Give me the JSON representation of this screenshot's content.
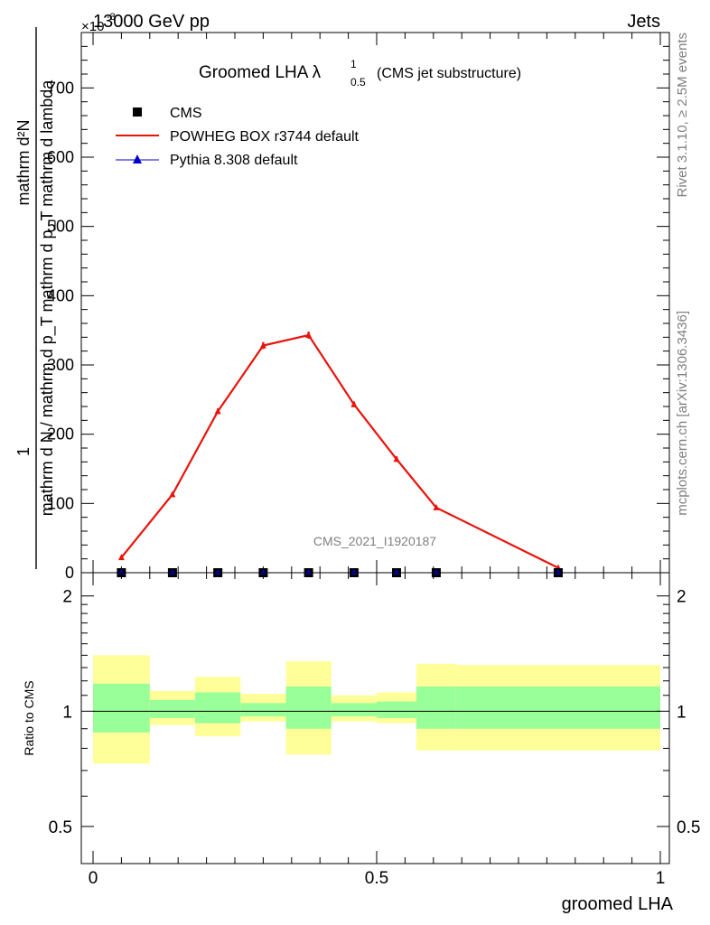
{
  "header": {
    "left": "13000 GeV pp",
    "right": "Jets",
    "exponent_marker": "×10",
    "exponent_value": "-3"
  },
  "side_labels": {
    "rivet": "Rivet 3.1.10, ≥ 2.5M events",
    "mcplots": "mcplots.cern.ch [arXiv:1306.3436]"
  },
  "watermark": "CMS_2021_I1920187",
  "title": {
    "main": "Groomed LHA λ",
    "sup": "1",
    "sub": "0.5",
    "suffix": "(CMS jet substructure)"
  },
  "legend": {
    "placement": "top-left",
    "entries": [
      {
        "label": "CMS",
        "marker": "square",
        "color": "#000000"
      },
      {
        "label": "POWHEG BOX r3744 default",
        "marker": "line",
        "color": "#e8140c"
      },
      {
        "label": "Pythia 8.308 default",
        "marker": "triangle",
        "color": "#0000cc"
      }
    ]
  },
  "chart_data": [
    {
      "type": "line",
      "panel": "main",
      "ylabel_numerator": "1",
      "ylabel_denominator": "mathrm d N / mathrm d p_T mathrm d p_T mathrm d lambda",
      "ylabel_numerator_right": "mathrm d²N",
      "xlim": [
        0,
        1
      ],
      "ylim": [
        0,
        780
      ],
      "y_scale_note": "×10^-3",
      "yticks": [
        0,
        100,
        200,
        300,
        400,
        500,
        600,
        700
      ],
      "ytick_labels": [
        "0",
        "100",
        "200",
        "300",
        "400",
        "500",
        "600",
        "700"
      ],
      "series": [
        {
          "name": "POWHEG BOX r3744 default",
          "color": "#e8140c",
          "x": [
            0.05,
            0.14,
            0.22,
            0.3,
            0.38,
            0.46,
            0.535,
            0.605,
            0.82
          ],
          "y": [
            22,
            113,
            233,
            328,
            343,
            243,
            164,
            94,
            7
          ],
          "err": [
            2,
            3,
            4,
            5,
            5,
            4,
            4,
            3,
            1
          ]
        },
        {
          "name": "CMS",
          "color": "#000000",
          "x": [
            0.05,
            0.14,
            0.22,
            0.3,
            0.38,
            0.46,
            0.535,
            0.605,
            0.82
          ],
          "y": [
            0,
            0,
            0,
            0,
            0,
            0,
            0,
            0,
            0
          ]
        },
        {
          "name": "Pythia 8.308 default",
          "color": "#0000cc",
          "x": [
            0.05,
            0.14,
            0.22,
            0.3,
            0.38,
            0.46,
            0.535,
            0.605,
            0.82
          ],
          "y": [
            0,
            0,
            0,
            0,
            0,
            0,
            0,
            0,
            0
          ]
        }
      ]
    },
    {
      "type": "area",
      "panel": "ratio",
      "ylabel": "Ratio to CMS",
      "xlabel": "groomed LHA",
      "xlim": [
        0,
        1
      ],
      "ylim": [
        0.4,
        2.3
      ],
      "y_scale": "log",
      "yticks": [
        0.5,
        1,
        2
      ],
      "ytick_labels": [
        "0.5",
        "1",
        "2"
      ],
      "xticks": [
        0,
        0.5,
        1
      ],
      "xtick_labels": [
        "0",
        "0.5",
        "1"
      ],
      "reference_line": 1,
      "bands": [
        {
          "x": [
            0.0,
            0.1
          ],
          "inner": [
            0.88,
            1.18
          ],
          "outer": [
            0.73,
            1.4
          ]
        },
        {
          "x": [
            0.1,
            0.18
          ],
          "inner": [
            0.96,
            1.07
          ],
          "outer": [
            0.92,
            1.13
          ]
        },
        {
          "x": [
            0.18,
            0.26
          ],
          "inner": [
            0.93,
            1.12
          ],
          "outer": [
            0.86,
            1.23
          ]
        },
        {
          "x": [
            0.26,
            0.34
          ],
          "inner": [
            0.97,
            1.05
          ],
          "outer": [
            0.94,
            1.11
          ]
        },
        {
          "x": [
            0.34,
            0.42
          ],
          "inner": [
            0.9,
            1.16
          ],
          "outer": [
            0.77,
            1.35
          ]
        },
        {
          "x": [
            0.42,
            0.5
          ],
          "inner": [
            0.97,
            1.05
          ],
          "outer": [
            0.94,
            1.1
          ]
        },
        {
          "x": [
            0.5,
            0.57
          ],
          "inner": [
            0.96,
            1.06
          ],
          "outer": [
            0.93,
            1.12
          ]
        },
        {
          "x": [
            0.57,
            0.64
          ],
          "inner": [
            0.9,
            1.16
          ],
          "outer": [
            0.79,
            1.33
          ]
        },
        {
          "x": [
            0.64,
            1.0
          ],
          "inner": [
            0.9,
            1.16
          ],
          "outer": [
            0.79,
            1.32
          ]
        }
      ],
      "colors": {
        "inner": "#99ff99",
        "outer": "#ffff99"
      }
    }
  ]
}
